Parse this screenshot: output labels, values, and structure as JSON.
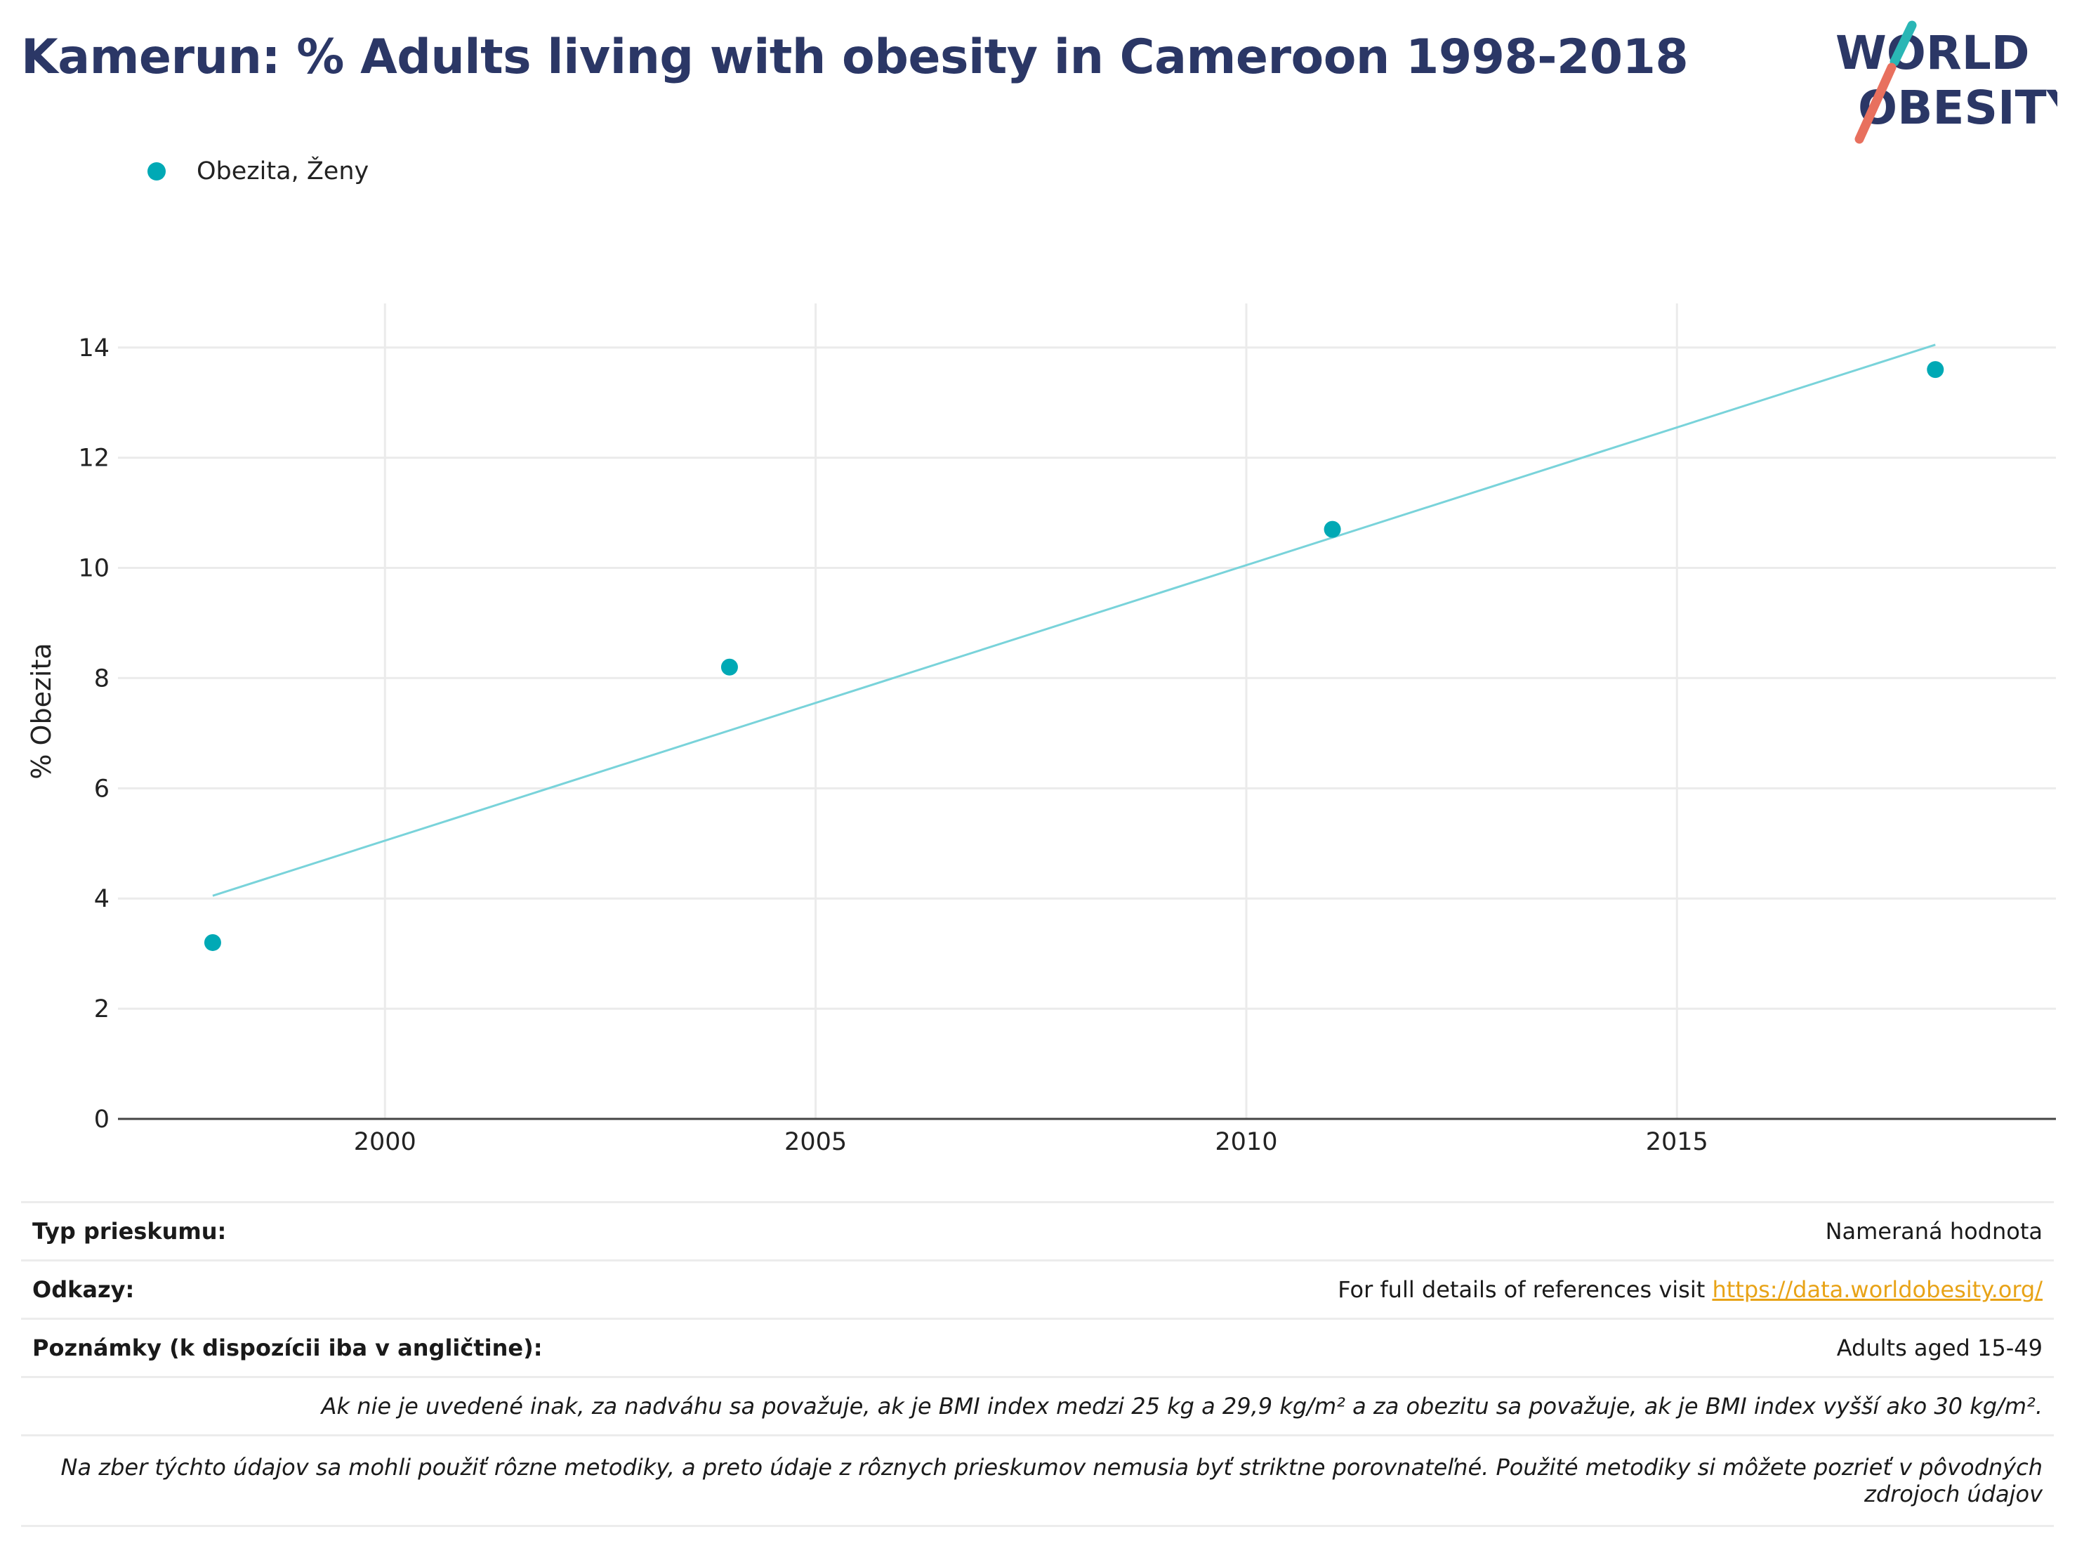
{
  "title": "Kamerun: % Adults living with obesity in Cameroon 1998-2018",
  "logo": {
    "line1": "WORLD",
    "line2": "OBESITY",
    "text_color": "#2b3766",
    "slash_teal": "#2ab6b5",
    "slash_coral": "#e8705e"
  },
  "legend": {
    "label": "Obezita, Ženy",
    "color": "#00a9b5"
  },
  "chart_data": {
    "type": "scatter",
    "title": "Kamerun: % Adults living with obesity in Cameroon 1998-2018",
    "xlabel": "",
    "ylabel": "% Obezita",
    "xlim": [
      1996.9,
      2019.4
    ],
    "ylim": [
      0,
      14.8
    ],
    "x_ticks": [
      2000,
      2005,
      2010,
      2015
    ],
    "y_ticks": [
      0,
      2,
      4,
      6,
      8,
      10,
      12,
      14
    ],
    "grid": true,
    "legend_position": "top-left",
    "series": [
      {
        "name": "Obezita, Ženy",
        "color": "#00a9b5",
        "x": [
          1998,
          2004,
          2011,
          2018
        ],
        "y": [
          3.2,
          8.2,
          10.7,
          13.6
        ]
      }
    ],
    "trendline": {
      "color": "#79d3da",
      "x": [
        1998,
        2018
      ],
      "y": [
        4.05,
        14.05
      ]
    }
  },
  "info": {
    "survey_type_label": "Typ prieskumu:",
    "survey_type_value": "Nameraná hodnota",
    "references_label": "Odkazy:",
    "references_text": "For full details of references visit ",
    "references_link": "https://data.worldobesity.org/",
    "notes_label": "Poznámky (k dispozícii iba v angličtine):",
    "notes_value": "Adults aged 15-49",
    "bmi_note": "Ak nie je uvedené inak, za nadváhu sa považuje, ak je BMI index medzi 25 kg a 29,9 kg/m² a za obezitu sa považuje, ak je BMI index vyšší ako 30 kg/m².",
    "methods_note": "Na zber týchto údajov sa mohli použiť rôzne metodiky, a preto údaje z rôznych prieskumov nemusia byť striktne porovnateľné. Použité metodiky si môžete pozrieť v pôvodných zdrojoch údajov"
  }
}
